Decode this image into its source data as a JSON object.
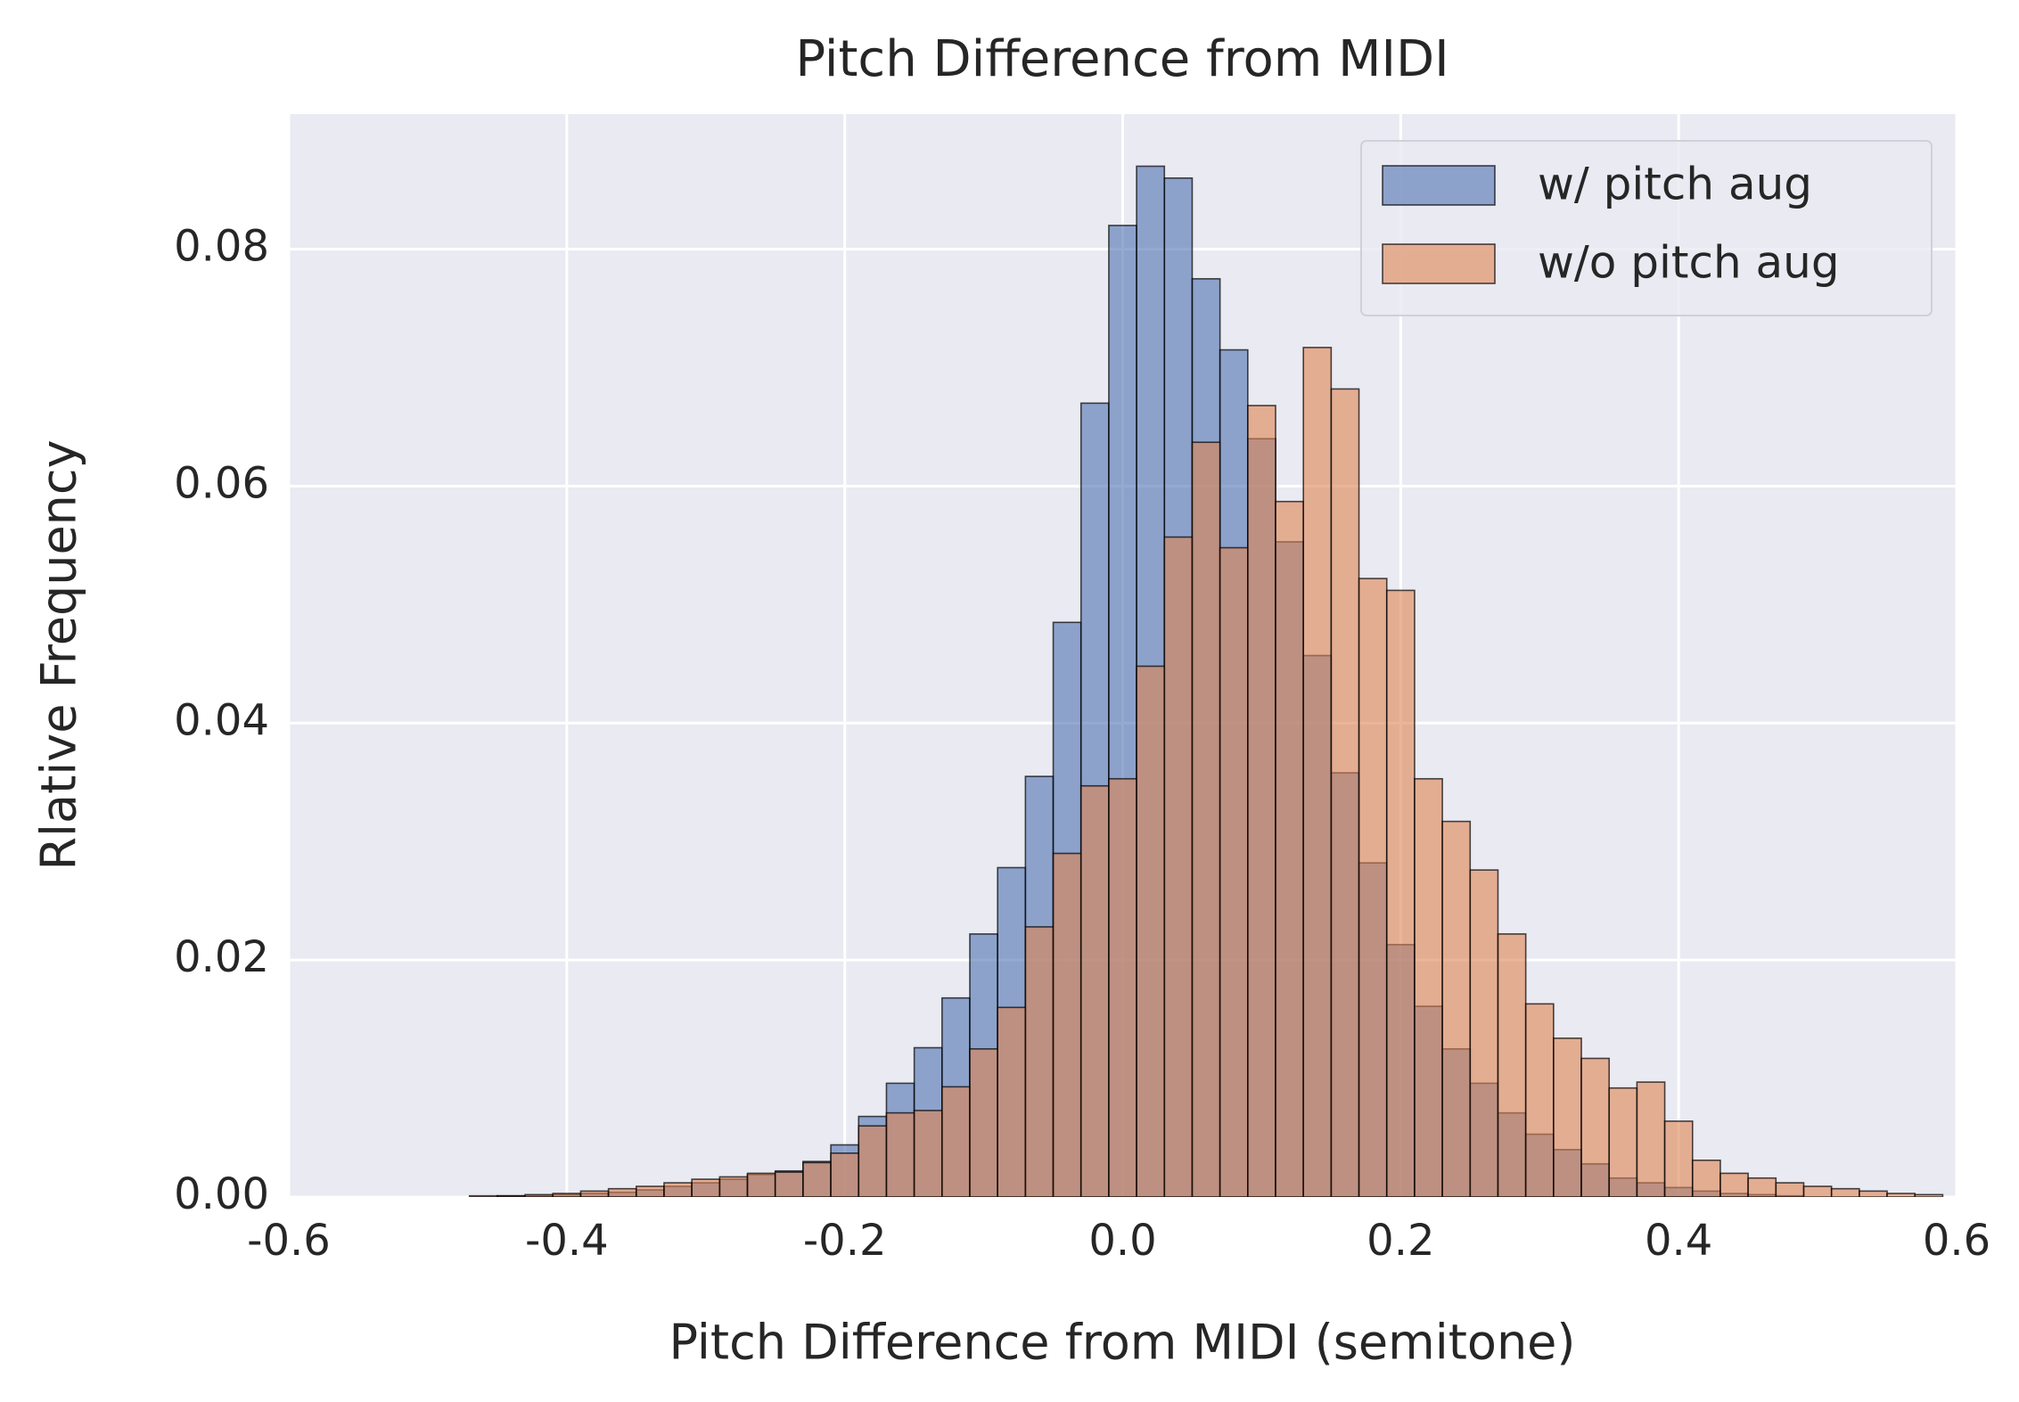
{
  "chart_data": {
    "type": "histogram",
    "title": "Pitch Difference from MIDI",
    "xlabel": "Pitch Difference from MIDI (semitone)",
    "ylabel": "Rlative Frequency",
    "bins": [
      -0.53,
      -0.51,
      -0.49,
      -0.47,
      -0.45,
      -0.43,
      -0.41,
      -0.39,
      -0.37,
      -0.35,
      -0.33,
      -0.31,
      -0.29,
      -0.27,
      -0.25,
      -0.23,
      -0.21,
      -0.19,
      -0.17,
      -0.15,
      -0.13,
      -0.11,
      -0.09,
      -0.07,
      -0.05,
      -0.03,
      -0.01,
      0.01,
      0.03,
      0.05,
      0.07,
      0.09,
      0.11,
      0.13,
      0.15,
      0.17,
      0.19,
      0.21,
      0.23,
      0.25,
      0.27,
      0.29,
      0.31,
      0.33,
      0.35,
      0.37,
      0.39,
      0.41,
      0.43,
      0.45,
      0.47,
      0.49,
      0.51,
      0.53,
      0.55,
      0.57,
      0.59
    ],
    "series": [
      {
        "name": "w/ pitch aug",
        "color": "#4c72b0",
        "values": [
          0,
          0,
          0,
          0,
          0.0001,
          0.0001,
          0.0002,
          0.0003,
          0.0004,
          0.0006,
          0.0009,
          0.0012,
          0.0015,
          0.0019,
          0.0022,
          0.003,
          0.0044,
          0.0068,
          0.0096,
          0.0126,
          0.0168,
          0.0222,
          0.0278,
          0.0355,
          0.0485,
          0.067,
          0.082,
          0.087,
          0.086,
          0.0775,
          0.0715,
          0.064,
          0.0553,
          0.0457,
          0.0358,
          0.0282,
          0.0213,
          0.0161,
          0.0125,
          0.0096,
          0.0071,
          0.0053,
          0.004,
          0.0028,
          0.0016,
          0.0012,
          0.0008,
          0.0005,
          0.0003,
          0.0002,
          0.0001,
          0,
          0,
          0,
          0,
          0
        ]
      },
      {
        "name": "w/o pitch aug",
        "color": "#dd8452",
        "values": [
          0,
          0,
          0,
          0.0001,
          0.0001,
          0.0002,
          0.0003,
          0.0005,
          0.0007,
          0.0009,
          0.0012,
          0.0015,
          0.0017,
          0.002,
          0.0021,
          0.0029,
          0.0037,
          0.006,
          0.0071,
          0.0073,
          0.0093,
          0.0125,
          0.016,
          0.0228,
          0.029,
          0.0347,
          0.0353,
          0.0448,
          0.0557,
          0.0637,
          0.0548,
          0.0668,
          0.0587,
          0.0717,
          0.0682,
          0.0522,
          0.0512,
          0.0353,
          0.0317,
          0.0276,
          0.0222,
          0.0163,
          0.0134,
          0.0117,
          0.0092,
          0.0097,
          0.0064,
          0.0031,
          0.002,
          0.0016,
          0.0012,
          0.0009,
          0.0007,
          0.0005,
          0.0003,
          0.0002
        ]
      }
    ],
    "xlim": [
      -0.6,
      0.6
    ],
    "ylim": [
      0,
      0.0914
    ],
    "xticks": [
      -0.6,
      -0.4,
      -0.2,
      {
        "value": 0,
        "label": "0.0"
      },
      0.2,
      0.4,
      0.6
    ],
    "yticks": [
      {
        "value": 0,
        "label": "0.00"
      },
      0.02,
      0.04,
      0.06,
      0.08
    ],
    "grid": true,
    "legend": "upper right"
  }
}
